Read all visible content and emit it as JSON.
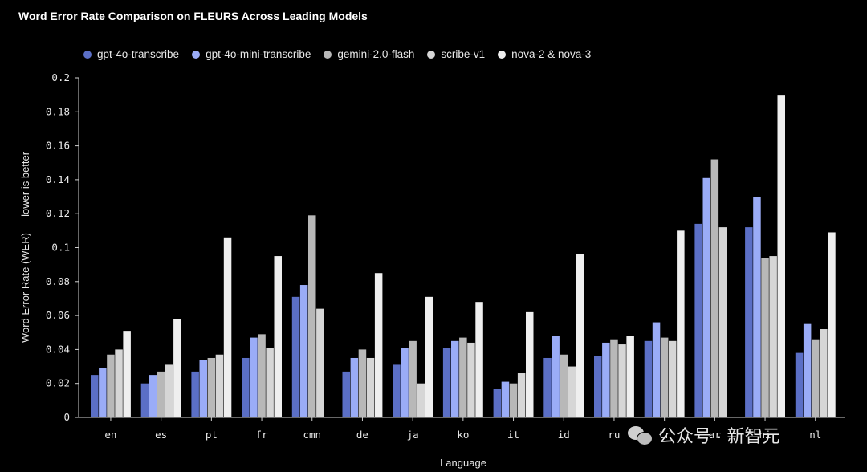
{
  "chart_data": {
    "type": "bar",
    "title": "Word Error Rate Comparison on FLEURS Across Leading Models",
    "xlabel": "Language",
    "ylabel": "Word Error Rate (WER) — lower is better",
    "ylim": [
      0,
      0.2
    ],
    "yticks": [
      "0",
      "0.02",
      "0.04",
      "0.06",
      "0.08",
      "0.1",
      "0.12",
      "0.14",
      "0.16",
      "0.18",
      "0.2"
    ],
    "grid": false,
    "legend_position": "top-left",
    "categories": [
      "en",
      "es",
      "pt",
      "fr",
      "cmn",
      "de",
      "ja",
      "ko",
      "it",
      "id",
      "ru",
      "tr",
      "ar",
      "hi",
      "nl"
    ],
    "series": [
      {
        "name": "gpt-4o-transcribe",
        "color": "#5b6fc6",
        "values": [
          0.025,
          0.02,
          0.027,
          0.035,
          0.071,
          0.027,
          0.031,
          0.041,
          0.017,
          0.035,
          0.036,
          0.045,
          0.114,
          0.112,
          0.038
        ]
      },
      {
        "name": "gpt-4o-mini-transcribe",
        "color": "#9aacf7",
        "values": [
          0.029,
          0.025,
          0.034,
          0.047,
          0.078,
          0.035,
          0.041,
          0.045,
          0.021,
          0.048,
          0.044,
          0.056,
          0.141,
          0.13,
          0.055
        ]
      },
      {
        "name": "gemini-2.0-flash",
        "color": "#b8b8b8",
        "values": [
          0.037,
          0.027,
          0.035,
          0.049,
          0.119,
          0.04,
          0.045,
          0.047,
          0.02,
          0.037,
          0.046,
          0.047,
          0.152,
          0.094,
          0.046
        ]
      },
      {
        "name": "scribe-v1",
        "color": "#d6d6d6",
        "values": [
          0.04,
          0.031,
          0.037,
          0.041,
          0.064,
          0.035,
          0.02,
          0.044,
          0.026,
          0.03,
          0.043,
          0.045,
          0.112,
          0.095,
          0.052
        ]
      },
      {
        "name": "nova-2 & nova-3",
        "color": "#efefef",
        "values": [
          0.051,
          0.058,
          0.106,
          0.095,
          null,
          0.085,
          0.071,
          0.068,
          0.062,
          0.096,
          0.048,
          0.11,
          null,
          0.19,
          0.109
        ]
      }
    ]
  },
  "watermark": {
    "text": "公众号 · 新智元",
    "icon": "wechat-bubble-icon"
  }
}
